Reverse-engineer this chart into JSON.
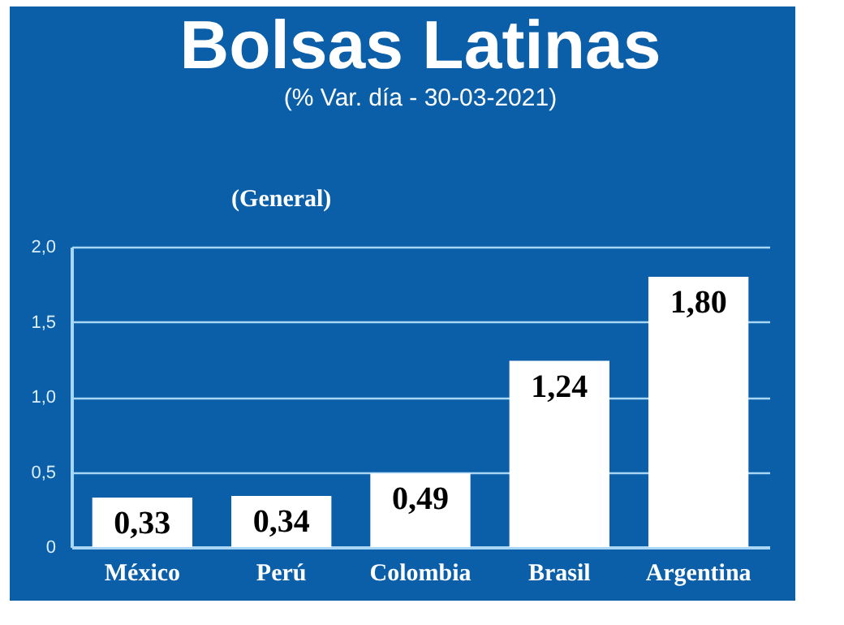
{
  "chart_data": {
    "type": "bar",
    "title": "Bolsas Latinas",
    "subtitle": "(% Var. día - 30-03-2021)",
    "categories": [
      "México",
      "Perú",
      "Colombia",
      "Brasil",
      "Argentina"
    ],
    "values": [
      0.33,
      0.34,
      0.49,
      1.24,
      1.8
    ],
    "color": "#ffffff",
    "value_labels": [
      "0,33",
      "0,34",
      "0,49",
      "1,24",
      "1,80"
    ],
    "annotations": [
      "(General)"
    ],
    "ylim": [
      0,
      2
    ],
    "yticks": [
      0,
      {
        "value": 0.5,
        "label": "0,5"
      },
      {
        "value": 1,
        "label": "1,0"
      },
      {
        "value": 1.5,
        "label": "1,5"
      },
      {
        "value": 2,
        "label": "2,0"
      }
    ],
    "grid": "y"
  }
}
